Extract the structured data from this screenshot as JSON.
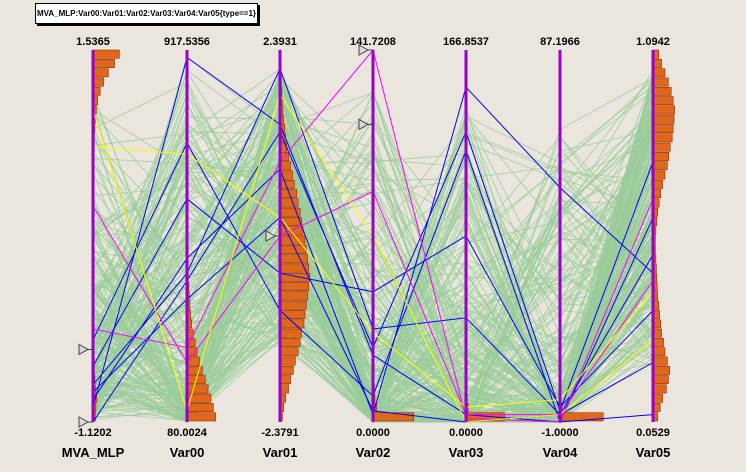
{
  "title": "MVA_MLP:Var00:Var01:Var02:Var03:Var04:Var05{type==1}",
  "colors": {
    "background": "#eae6dd",
    "axis": "#9900cc",
    "bulk_lines": "#99cc99",
    "highlight_blue": "#0000ff",
    "highlight_magenta": "#ff00ff",
    "highlight_yellow": "#ffff00",
    "histogram_fill": "#e0661a",
    "histogram_edge": "#8b1a00"
  },
  "chart_data": {
    "type": "parallel_coordinates",
    "variables": [
      {
        "name": "MVA_MLP",
        "max_label": "1.5365",
        "min_label": "-1.1202",
        "min": -1.1202,
        "max": 1.5365
      },
      {
        "name": "Var00",
        "max_label": "917.5356",
        "min_label": "80.0024",
        "min": 80.0024,
        "max": 917.5356
      },
      {
        "name": "Var01",
        "max_label": "2.3931",
        "min_label": "-2.3791",
        "min": -2.3791,
        "max": 2.3931
      },
      {
        "name": "Var02",
        "max_label": "141.7208",
        "min_label": "0.0000",
        "min": 0.0,
        "max": 141.7208
      },
      {
        "name": "Var03",
        "max_label": "166.8537",
        "min_label": "0.0000",
        "min": 0.0,
        "max": 166.8537
      },
      {
        "name": "Var04",
        "max_label": "87.1966",
        "min_label": "-1.0000",
        "min": -1.0,
        "max": 87.1966
      },
      {
        "name": "Var05",
        "max_label": "1.0942",
        "min_label": "0.0529",
        "min": 0.0529,
        "max": 1.0942
      }
    ],
    "highlighted_lines": [
      {
        "color": "blue",
        "values": [
          0.04,
          0.98,
          0.8,
          0.18,
          0.02,
          0.0,
          0.02
        ]
      },
      {
        "color": "blue",
        "values": [
          0.0,
          0.38,
          0.78,
          0.2,
          0.78,
          0.03,
          0.7
        ]
      },
      {
        "color": "blue",
        "values": [
          0.08,
          0.33,
          0.55,
          0.03,
          0.0,
          0.02,
          0.45
        ]
      },
      {
        "color": "blue",
        "values": [
          0.06,
          0.44,
          0.68,
          0.02,
          0.9,
          0.63,
          0.4
        ]
      },
      {
        "color": "blue",
        "values": [
          0.15,
          0.6,
          0.4,
          0.35,
          0.5,
          0.04,
          0.3
        ]
      },
      {
        "color": "blue",
        "values": [
          0.22,
          0.75,
          0.3,
          0.07,
          0.73,
          0.0,
          0.55
        ]
      },
      {
        "color": "blue",
        "values": [
          0.1,
          0.4,
          0.95,
          0.25,
          0.28,
          0.02,
          0.16
        ]
      },
      {
        "color": "magenta",
        "values": [
          0.25,
          0.2,
          0.7,
          1.0,
          0.01,
          0.0,
          0.6
        ]
      },
      {
        "color": "magenta",
        "values": [
          0.58,
          0.16,
          0.5,
          0.62,
          0.02,
          0.02,
          0.38
        ]
      },
      {
        "color": "yellow",
        "values": [
          0.74,
          0.72,
          0.55,
          0.24,
          0.04,
          0.06,
          0.35
        ]
      },
      {
        "color": "yellow",
        "values": [
          0.84,
          0.03,
          0.88,
          0.5,
          0.0,
          0.02,
          0.22
        ]
      }
    ],
    "histograms": {
      "MVA_MLP": [
        0.05,
        0.06,
        0.08,
        0.05,
        0.04,
        0.03,
        0.03,
        0.02,
        0.02,
        0.02,
        0.01,
        0.01,
        0.01,
        0.01,
        0.01,
        0.01,
        0.01,
        0.01,
        0.01,
        0.01,
        0.01,
        0.01,
        0.01,
        0.01,
        0.01,
        0.01,
        0.01,
        0.02,
        0.02,
        0.03,
        0.03,
        0.04,
        0.05,
        0.07,
        0.1,
        0.15,
        0.22,
        0.32,
        0.45,
        0.55
      ],
      "Var00": [
        0.6,
        0.55,
        0.5,
        0.44,
        0.38,
        0.32,
        0.26,
        0.21,
        0.17,
        0.13,
        0.1,
        0.08,
        0.06,
        0.05,
        0.04,
        0.03,
        0.02,
        0.02,
        0.01,
        0.01,
        0.01,
        0.01,
        0.01,
        0.01,
        0.0,
        0.0,
        0.0,
        0.0,
        0.0,
        0.0,
        0.0,
        0.0,
        0.0,
        0.0,
        0.0,
        0.0,
        0.0,
        0.0,
        0.0,
        0.0
      ],
      "Var01": [
        0.05,
        0.08,
        0.12,
        0.18,
        0.22,
        0.28,
        0.32,
        0.38,
        0.42,
        0.45,
        0.5,
        0.52,
        0.55,
        0.58,
        0.6,
        0.62,
        0.6,
        0.58,
        0.55,
        0.52,
        0.48,
        0.45,
        0.42,
        0.38,
        0.35,
        0.3,
        0.26,
        0.22,
        0.18,
        0.14,
        0.12,
        0.1,
        0.08,
        0.06,
        0.05,
        0.04,
        0.03,
        0.02,
        0.02,
        0.01
      ],
      "Var02": [
        0.85,
        0.08,
        0.04,
        0.03,
        0.02,
        0.02,
        0.01,
        0.01,
        0.01,
        0.01,
        0.01,
        0.01,
        0.0,
        0.0,
        0.0,
        0.0,
        0.0,
        0.0,
        0.0,
        0.0,
        0.0,
        0.0,
        0.0,
        0.0,
        0.0,
        0.0,
        0.0,
        0.0,
        0.0,
        0.0,
        0.0,
        0.0,
        0.0,
        0.0,
        0.0,
        0.0,
        0.0,
        0.0,
        0.0,
        0.0
      ],
      "Var03": [
        0.8,
        0.05,
        0.03,
        0.02,
        0.01,
        0.01,
        0.01,
        0.0,
        0.0,
        0.0,
        0.0,
        0.0,
        0.0,
        0.0,
        0.0,
        0.0,
        0.0,
        0.0,
        0.0,
        0.0,
        0.0,
        0.0,
        0.0,
        0.0,
        0.0,
        0.0,
        0.0,
        0.0,
        0.0,
        0.0,
        0.0,
        0.0,
        0.0,
        0.0,
        0.0,
        0.0,
        0.0,
        0.0,
        0.0,
        0.0
      ],
      "Var04": [
        0.9,
        0.04,
        0.02,
        0.01,
        0.01,
        0.0,
        0.0,
        0.0,
        0.0,
        0.0,
        0.0,
        0.0,
        0.0,
        0.0,
        0.0,
        0.0,
        0.0,
        0.0,
        0.0,
        0.0,
        0.0,
        0.0,
        0.0,
        0.0,
        0.0,
        0.0,
        0.0,
        0.0,
        0.0,
        0.0,
        0.0,
        0.0,
        0.0,
        0.0,
        0.0,
        0.0,
        0.0,
        0.0,
        0.0,
        0.0
      ],
      "Var05": [
        0.1,
        0.15,
        0.2,
        0.28,
        0.32,
        0.35,
        0.3,
        0.25,
        0.22,
        0.18,
        0.16,
        0.14,
        0.12,
        0.1,
        0.09,
        0.08,
        0.07,
        0.06,
        0.05,
        0.05,
        0.06,
        0.08,
        0.1,
        0.13,
        0.16,
        0.2,
        0.25,
        0.3,
        0.33,
        0.36,
        0.4,
        0.42,
        0.44,
        0.45,
        0.42,
        0.38,
        0.32,
        0.25,
        0.18,
        0.12
      ]
    }
  }
}
